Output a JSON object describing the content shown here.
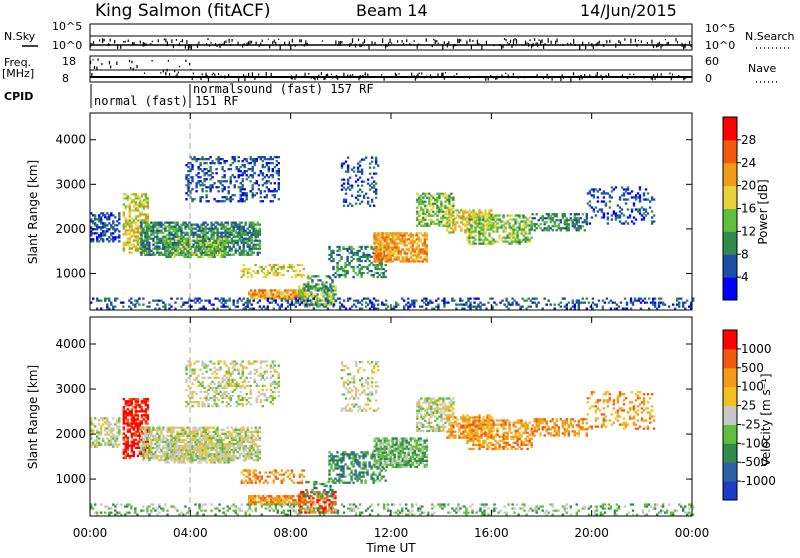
{
  "header": {
    "station": "King Salmon (fitACF)",
    "beam": "Beam 14",
    "date": "14/Jun/2015"
  },
  "top_panel": {
    "left_label_sky": "N.Sky",
    "left_tick_top": "10^5",
    "left_tick_bottom": "10^0",
    "right_label_search": "N.Search",
    "right_tick_top": "10^5",
    "right_tick_bottom": "10^0",
    "freq_label_1": "Freq.",
    "freq_label_2": "[MHz]",
    "freq_tick_top": "18",
    "freq_tick_bottom": "8",
    "nave_label": "Nave",
    "nave_tick_top": "60",
    "nave_tick_bottom": "0",
    "cpid_label": "CPID",
    "cpid_mode_1": "normal (fast) 151 RF",
    "cpid_mode_2": "normalsound (fast) 157 RF"
  },
  "chart_data": [
    {
      "type": "heatmap",
      "name": "power",
      "ylabel": "Slant Range [km]",
      "ylim": [
        180,
        4600
      ],
      "yticks": [
        1000,
        2000,
        3000,
        4000
      ],
      "xlim": [
        0,
        24
      ],
      "colorbar": {
        "label": "Power [dB]",
        "ticks": [
          "4",
          "8",
          "12",
          "16",
          "20",
          "24",
          "28"
        ],
        "colors": [
          "#0000ff",
          "#1e4ea8",
          "#2f8a4c",
          "#5fbf3c",
          "#e8d23a",
          "#f29a1a",
          "#f25a10",
          "#ff0000"
        ]
      }
    },
    {
      "type": "heatmap",
      "name": "velocity",
      "ylabel": "Slant Range [km]",
      "ylim": [
        180,
        4600
      ],
      "yticks": [
        1000,
        2000,
        3000,
        4000
      ],
      "xlim": [
        0,
        24
      ],
      "xticks": [
        "00:00",
        "04:00",
        "08:00",
        "12:00",
        "16:00",
        "20:00",
        "00:00"
      ],
      "xlabel": "Time UT",
      "colorbar": {
        "label": "Velocity [m s⁻¹]",
        "ticks": [
          "1000",
          "500",
          "100",
          "25",
          "-25",
          "-100",
          "-500",
          "-1000"
        ],
        "colors": [
          "#1e3cc8",
          "#2c60a8",
          "#2f8a4c",
          "#5fbf3c",
          "#c8c8c8",
          "#f2c020",
          "#f29a1a",
          "#f25a10",
          "#ff0000"
        ]
      }
    }
  ]
}
